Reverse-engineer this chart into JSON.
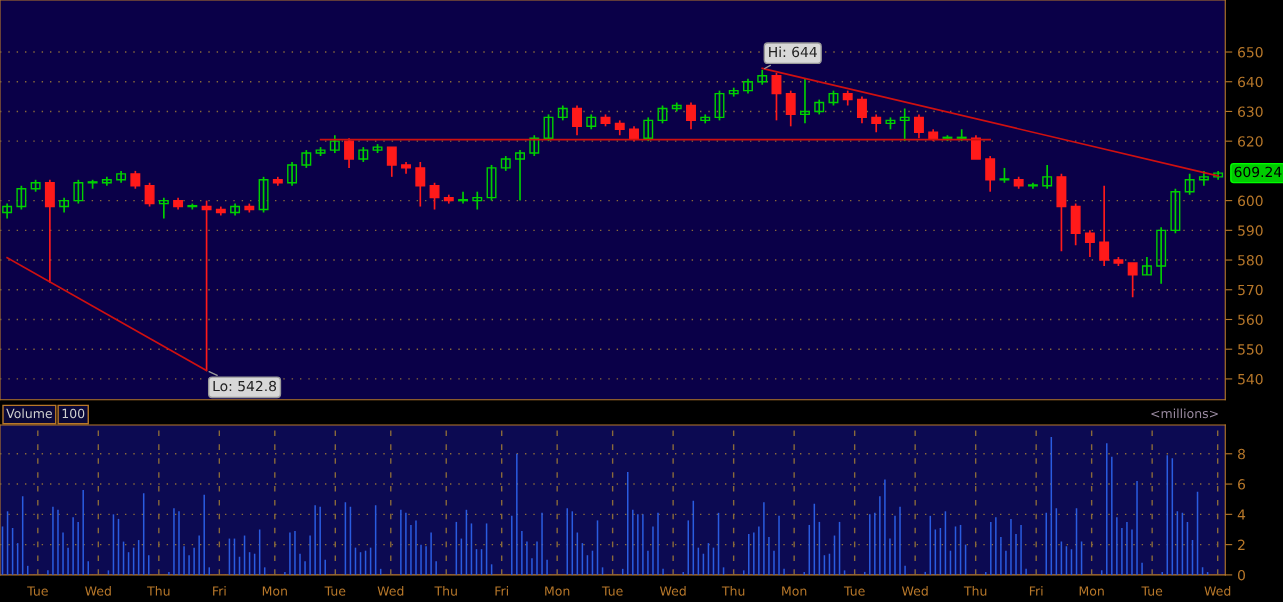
{
  "chart_data": [
    {
      "type": "candlestick",
      "categories": [
        null,
        null,
        null,
        null,
        null,
        null,
        null,
        null,
        null,
        null,
        null,
        null,
        null,
        null,
        null,
        null,
        null,
        null,
        null,
        null,
        null,
        null,
        null,
        null,
        null,
        null,
        null,
        null,
        null,
        null,
        null,
        null,
        null,
        null,
        null,
        null,
        null,
        null,
        null,
        null,
        null,
        null,
        null,
        null,
        null,
        null,
        null,
        null,
        null,
        null,
        null,
        null,
        null,
        null,
        null,
        null,
        null,
        null,
        null,
        null,
        null,
        null,
        null,
        null,
        null,
        null,
        null,
        null,
        null,
        null,
        null,
        null,
        null,
        null,
        null,
        null,
        null,
        null,
        null,
        null,
        null,
        null,
        null,
        null,
        null,
        null
      ],
      "ohlc": [
        [
          596,
          599,
          594,
          598
        ],
        [
          598,
          605,
          597,
          604
        ],
        [
          604,
          607,
          603,
          606
        ],
        [
          606,
          607,
          572.4,
          598
        ],
        [
          598,
          601,
          596,
          600
        ],
        [
          600,
          607,
          599,
          606
        ],
        [
          606,
          607,
          604,
          606
        ],
        [
          606,
          608,
          605,
          607
        ],
        [
          607,
          610,
          606,
          609
        ],
        [
          609,
          610,
          604,
          605
        ],
        [
          605,
          606,
          598,
          599
        ],
        [
          599,
          601,
          594,
          600
        ],
        [
          600,
          601,
          597,
          598
        ],
        [
          598,
          599,
          597,
          598
        ],
        [
          598,
          600,
          542.8,
          597
        ],
        [
          597,
          598,
          595,
          596
        ],
        [
          596,
          599,
          595,
          598
        ],
        [
          598,
          599,
          596,
          597
        ],
        [
          597,
          608,
          596,
          607
        ],
        [
          607,
          608,
          605,
          606
        ],
        [
          606,
          613,
          605,
          612
        ],
        [
          612,
          617,
          611,
          616
        ],
        [
          616,
          618,
          615,
          617
        ],
        [
          617,
          622,
          616,
          620
        ],
        [
          620,
          621,
          611,
          614
        ],
        [
          614,
          618,
          613,
          617
        ],
        [
          617,
          619,
          616,
          618
        ],
        [
          618,
          618,
          608,
          612
        ],
        [
          612,
          613,
          609,
          611
        ],
        [
          611,
          613,
          598,
          605
        ],
        [
          605,
          606,
          597,
          601
        ],
        [
          601,
          602,
          599,
          600
        ],
        [
          600,
          603,
          599,
          600
        ],
        [
          600,
          603,
          597,
          601
        ],
        [
          601,
          612,
          600,
          611
        ],
        [
          611,
          615,
          610,
          614
        ],
        [
          614,
          617,
          600,
          616
        ],
        [
          616,
          622,
          615,
          621
        ],
        [
          621,
          629,
          620,
          628
        ],
        [
          628,
          632,
          627,
          631
        ],
        [
          631,
          632,
          622,
          625
        ],
        [
          625,
          629,
          624,
          628
        ],
        [
          628,
          629,
          625,
          626
        ],
        [
          626,
          627,
          622,
          624
        ],
        [
          624,
          625,
          620,
          621
        ],
        [
          621,
          628,
          620,
          627
        ],
        [
          627,
          632,
          626,
          631
        ],
        [
          631,
          633,
          630,
          632
        ],
        [
          632,
          633,
          624,
          627
        ],
        [
          627,
          629,
          626,
          628
        ],
        [
          628,
          637,
          627,
          636
        ],
        [
          636,
          638,
          635,
          637
        ],
        [
          637,
          641,
          636,
          640
        ],
        [
          640,
          644,
          639,
          642
        ],
        [
          642,
          643,
          627,
          636
        ],
        [
          636,
          637,
          625,
          629
        ],
        [
          629,
          641,
          626,
          630
        ],
        [
          630,
          634,
          629,
          633
        ],
        [
          633,
          637,
          632,
          636
        ],
        [
          636,
          637,
          632,
          634
        ],
        [
          634,
          635,
          626,
          628
        ],
        [
          628,
          629,
          623,
          626
        ],
        [
          626,
          628,
          624,
          627
        ],
        [
          627,
          631,
          620,
          628
        ],
        [
          628,
          629,
          621,
          623
        ],
        [
          623,
          624,
          620,
          621
        ],
        [
          621,
          622,
          620,
          621
        ],
        [
          621,
          624,
          620,
          621
        ],
        [
          621,
          622,
          614,
          614
        ],
        [
          614,
          615,
          603,
          607
        ],
        [
          607,
          611,
          606,
          607
        ],
        [
          607,
          608,
          604,
          605
        ],
        [
          605,
          606,
          604,
          605
        ],
        [
          605,
          612,
          604,
          608
        ],
        [
          608,
          609,
          583,
          598
        ],
        [
          598,
          599,
          585,
          589
        ],
        [
          589,
          590,
          581,
          586
        ],
        [
          586,
          605,
          578,
          580
        ],
        [
          580,
          581,
          578,
          579
        ],
        [
          579,
          579,
          567.5,
          575
        ],
        [
          575,
          581,
          575,
          578
        ],
        [
          578,
          591,
          572,
          590
        ],
        [
          590,
          604,
          589,
          603
        ],
        [
          603,
          609,
          602,
          607
        ],
        [
          607,
          610,
          605,
          608
        ],
        [
          608,
          610,
          607,
          609.24
        ]
      ],
      "colors": [
        "#00d000",
        "#00d000",
        "#00d000",
        "#ff1a1a",
        "#00d000",
        "#00d000",
        "#00d000",
        "#00d000",
        "#00d000",
        "#ff1a1a",
        "#ff1a1a",
        "#00d000",
        "#ff1a1a",
        "#00d000",
        "#ff1a1a",
        "#ff1a1a",
        "#00d000",
        "#ff1a1a",
        "#00d000",
        "#ff1a1a",
        "#00d000",
        "#00d000",
        "#00d000",
        "#00d000",
        "#ff1a1a",
        "#00d000",
        "#00d000",
        "#ff1a1a",
        "#ff1a1a",
        "#ff1a1a",
        "#ff1a1a",
        "#ff1a1a",
        "#00d000",
        "#00d000",
        "#00d000",
        "#00d000",
        "#00d000",
        "#00d000",
        "#00d000",
        "#00d000",
        "#ff1a1a",
        "#00d000",
        "#ff1a1a",
        "#ff1a1a",
        "#ff1a1a",
        "#00d000",
        "#00d000",
        "#00d000",
        "#ff1a1a",
        "#00d000",
        "#00d000",
        "#00d000",
        "#00d000",
        "#00d000",
        "#ff1a1a",
        "#ff1a1a",
        "#00d000",
        "#00d000",
        "#00d000",
        "#ff1a1a",
        "#ff1a1a",
        "#ff1a1a",
        "#00d000",
        "#00d000",
        "#ff1a1a",
        "#ff1a1a",
        "#00d000",
        "#00d000",
        "#ff1a1a",
        "#ff1a1a",
        "#00d000",
        "#ff1a1a",
        "#00d000",
        "#00d000",
        "#ff1a1a",
        "#ff1a1a",
        "#ff1a1a",
        "#ff1a1a",
        "#ff1a1a",
        "#ff1a1a",
        "#00d000",
        "#00d000",
        "#00d000",
        "#00d000",
        "#00d000",
        "#00d000"
      ],
      "ylim": [
        533,
        667.5
      ],
      "yticks": [
        540,
        550,
        560,
        570,
        580,
        590,
        600,
        620,
        630,
        640,
        650
      ],
      "tick_labels": "y",
      "grid": "y",
      "series": [
        {
          "type": "line",
          "color": "#d01010",
          "values": [
            580.8,
            null,
            null,
            null,
            null,
            null,
            null,
            null,
            null,
            null,
            null,
            null,
            null,
            null,
            542.8,
            null,
            null,
            null,
            null,
            null,
            null,
            null,
            null,
            null,
            null,
            null,
            null,
            null,
            null,
            null,
            null,
            null,
            null,
            null,
            null,
            null,
            null,
            null,
            null,
            null,
            null,
            null,
            null,
            null,
            null,
            null,
            null,
            null,
            null,
            null,
            null,
            null,
            null,
            null,
            null,
            null,
            null,
            null,
            null,
            null,
            null,
            null,
            null,
            null,
            null,
            null,
            null,
            null,
            null,
            null,
            null,
            null,
            null,
            null,
            null,
            null,
            null,
            null,
            null,
            null,
            null,
            null,
            null,
            null,
            null,
            null
          ]
        },
        {
          "type": "line",
          "color": "#d01010",
          "values": [
            null,
            null,
            null,
            null,
            null,
            null,
            null,
            null,
            null,
            null,
            null,
            null,
            null,
            null,
            null,
            null,
            null,
            null,
            null,
            null,
            null,
            null,
            null,
            null,
            null,
            null,
            null,
            null,
            null,
            null,
            null,
            null,
            null,
            null,
            null,
            null,
            null,
            null,
            null,
            null,
            null,
            null,
            null,
            null,
            null,
            null,
            null,
            null,
            null,
            null,
            null,
            null,
            null,
            644.5,
            null,
            null,
            null,
            null,
            null,
            null,
            null,
            null,
            null,
            null,
            null,
            null,
            null,
            null,
            null,
            null,
            null,
            null,
            null,
            null,
            null,
            null,
            null,
            null,
            null,
            null,
            null,
            null,
            null,
            null,
            null,
            608.3
          ]
        },
        {
          "type": "line",
          "color": "#d01010",
          "values": [
            null,
            null,
            null,
            null,
            null,
            null,
            null,
            null,
            null,
            null,
            null,
            null,
            null,
            null,
            null,
            null,
            null,
            null,
            null,
            null,
            null,
            null,
            620.5,
            null,
            null,
            null,
            null,
            null,
            null,
            null,
            null,
            null,
            null,
            null,
            null,
            null,
            null,
            null,
            null,
            null,
            null,
            null,
            null,
            null,
            null,
            null,
            null,
            null,
            null,
            null,
            null,
            null,
            null,
            null,
            null,
            null,
            null,
            null,
            null,
            null,
            null,
            null,
            null,
            null,
            null,
            null,
            null,
            null,
            null,
            620.5,
            null,
            null,
            null,
            null,
            null,
            null,
            null,
            null,
            null,
            null,
            null,
            null,
            null,
            null,
            null,
            null
          ]
        }
      ],
      "annotations": [
        {
          "text": "Hi: 644",
          "y": 644
        },
        "Lo: 542.8",
        "609.24"
      ]
    },
    {
      "type": "bar",
      "categories": [
        null,
        null,
        null,
        null,
        null,
        null,
        null,
        "Tue",
        null,
        null,
        null,
        null,
        null,
        null,
        null,
        null,
        null,
        null,
        null,
        "Wed",
        null,
        null,
        null,
        null,
        null,
        null,
        null,
        null,
        null,
        null,
        null,
        "Thu",
        null,
        null,
        null,
        null,
        null,
        null,
        null,
        null,
        null,
        null,
        null,
        "Fri",
        null,
        null,
        null,
        null,
        null,
        null,
        null,
        null,
        null,
        null,
        "Mon",
        null,
        null,
        null,
        null,
        null,
        null,
        null,
        null,
        null,
        null,
        null,
        "Tue",
        null,
        null,
        null,
        null,
        null,
        null,
        null,
        null,
        null,
        null,
        "Wed",
        null,
        null,
        null,
        null,
        null,
        null,
        null,
        null,
        null,
        null,
        "Thu",
        null,
        null,
        null,
        null,
        null,
        null,
        null,
        null,
        null,
        null,
        "Fri",
        null,
        null,
        null,
        null,
        null,
        null,
        null,
        null,
        null,
        null,
        "Mon",
        null,
        null,
        null,
        null,
        null,
        null,
        null,
        null,
        null,
        null,
        "Tue",
        null,
        null,
        null,
        null,
        null,
        null,
        null,
        null,
        null,
        null,
        null,
        "Wed",
        null,
        null,
        null,
        null,
        null,
        null,
        null,
        null,
        null,
        null,
        null,
        "Thu",
        null,
        null,
        null,
        null,
        null,
        null,
        null,
        null,
        null,
        null,
        null,
        "Mon",
        null,
        null,
        null,
        null,
        null,
        null,
        null,
        null,
        null,
        null,
        null,
        "Tue",
        null,
        null,
        null,
        null,
        null,
        null,
        null,
        null,
        null,
        null,
        null,
        "Wed",
        null,
        null,
        null,
        null,
        null,
        null,
        null,
        null,
        null,
        null,
        null,
        "Thu",
        null,
        null,
        null,
        null,
        null,
        null,
        null,
        null,
        null,
        null,
        null,
        "Fri",
        null,
        null,
        null,
        null,
        null,
        null,
        null,
        null,
        null,
        null,
        "Mon",
        null,
        null,
        null,
        null,
        null,
        null,
        null,
        null,
        null,
        null,
        null,
        "Tue",
        null,
        null,
        null,
        null,
        null,
        null,
        null,
        null,
        null,
        null,
        null,
        null,
        "Wed",
        null
      ],
      "values": [
        3.2,
        4.2,
        3.1,
        2.1,
        5.2,
        0.6,
        null,
        null,
        null,
        0.3,
        4.5,
        4.3,
        2.8,
        1.8,
        3.8,
        3.5,
        5.6,
        0.9,
        null,
        null,
        null,
        0.3,
        4.0,
        3.7,
        2.2,
        1.5,
        1.8,
        2.3,
        5.4,
        1.3,
        null,
        null,
        null,
        0.2,
        4.4,
        4.2,
        1.9,
        1.3,
        1.8,
        2.6,
        5.3,
        0.5,
        null,
        null,
        null,
        2.4,
        2.4,
        1.2,
        2.6,
        1.5,
        1.4,
        3.0,
        0.5,
        null,
        null,
        null,
        0.2,
        2.8,
        2.9,
        1.4,
        0.9,
        2.6,
        4.6,
        4.5,
        1.0,
        null,
        null,
        null,
        4.8,
        4.5,
        1.8,
        1.5,
        1.6,
        1.8,
        4.6,
        0.4,
        null,
        null,
        null,
        4.3,
        4.1,
        3.3,
        3.6,
        2.0,
        1.9,
        2.8,
        0.9,
        null,
        null,
        null,
        3.5,
        2.4,
        4.3,
        3.4,
        1.7,
        1.7,
        3.4,
        0.7,
        null,
        null,
        null,
        3.9,
        8.0,
        2.9,
        2.2,
        1.1,
        2.2,
        4.1,
        1.0,
        null,
        null,
        null,
        4.4,
        4.2,
        2.8,
        2.1,
        1.3,
        1.6,
        3.6,
        0.5,
        null,
        null,
        null,
        0.4,
        6.8,
        4.3,
        4.0,
        4.0,
        1.6,
        3.2,
        4.1,
        0.4,
        null,
        null,
        null,
        0.2,
        3.6,
        4.9,
        1.8,
        1.4,
        2.1,
        1.8,
        4.1,
        0.5,
        null,
        null,
        null,
        0.3,
        2.7,
        2.8,
        3.2,
        4.8,
        2.5,
        1.6,
        3.9,
        0.4,
        null,
        null,
        null,
        0.2,
        3.3,
        4.7,
        3.5,
        1.3,
        1.4,
        2.6,
        3.5,
        0.3,
        null,
        null,
        null,
        0.2,
        4.0,
        4.1,
        5.2,
        6.3,
        2.4,
        3.9,
        4.5,
        0.6,
        null,
        null,
        null,
        0.2,
        3.9,
        3.0,
        3.1,
        4.2,
        1.6,
        3.2,
        3.3,
        2.0,
        null,
        null,
        null,
        0.2,
        3.5,
        3.8,
        2.5,
        1.6,
        3.7,
        2.7,
        3.3,
        0.4,
        null,
        null,
        null,
        4.1,
        9.1,
        4.4,
        2.2,
        1.9,
        1.7,
        4.4,
        2.2,
        null,
        null,
        null,
        0.3,
        8.7,
        7.8,
        3.8,
        3.1,
        3.5,
        3.0,
        6.2,
        0.8,
        null,
        null,
        null,
        0.2,
        7.9,
        7.7,
        4.2,
        4.1,
        3.5,
        2.3,
        5.5,
        0.5,
        0.2,
        null,
        null,
        null
      ],
      "color": "#2a5ce0",
      "ylim": [
        0,
        9.9
      ],
      "yticks": [
        0,
        2,
        4,
        6,
        8
      ],
      "grid": true,
      "annotations": [
        "Volume",
        "100",
        "<millions>"
      ]
    }
  ]
}
